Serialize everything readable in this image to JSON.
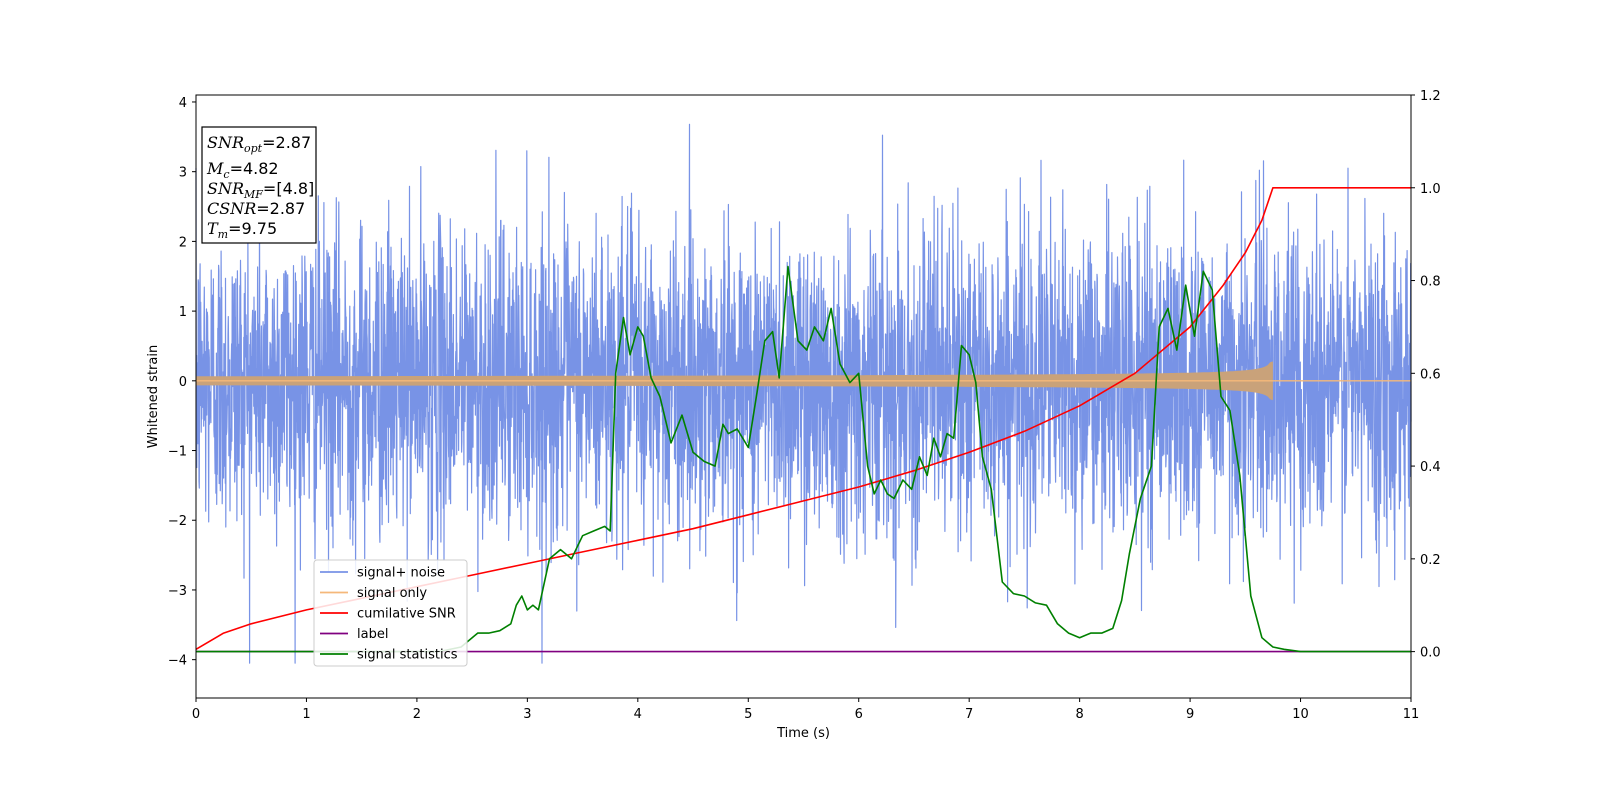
{
  "chart_data": {
    "type": "line",
    "xlabel": "Time (s)",
    "ylabel": "Whitened strain",
    "xlim": [
      0,
      11
    ],
    "ylim_left": [
      -4.55,
      4.1
    ],
    "ylim_right": [
      -0.1,
      1.2
    ],
    "x_ticks": [
      0,
      1,
      2,
      3,
      4,
      5,
      6,
      7,
      8,
      9,
      10,
      11
    ],
    "y_left_ticks": [
      -4,
      -3,
      -2,
      -1,
      0,
      1,
      2,
      3,
      4
    ],
    "y_right_ticks": [
      0.0,
      0.2,
      0.4,
      0.6,
      0.8,
      1.0,
      1.2
    ],
    "grid": false,
    "legend_position": "lower-left",
    "info_box": {
      "snr_opt": {
        "base": "SNR",
        "sub": "opt",
        "value": "=2.87"
      },
      "mc": {
        "base": "M",
        "sub": "c",
        "value": "=4.82"
      },
      "snr_mf": {
        "base": "SNR",
        "sub": "MF",
        "value": "=[4.8]"
      },
      "csnr": {
        "base": "CSNR",
        "value": "=2.87"
      },
      "tm": {
        "base": "T",
        "sub": "m",
        "value": "=9.75"
      }
    },
    "series": [
      {
        "name": "signal+ noise",
        "color": "#7893e6",
        "axis": "left",
        "kind": "noise",
        "sigma": 1.0,
        "x_range": [
          0,
          11
        ],
        "max": 3.68,
        "min": -4.05
      },
      {
        "name": "signal only",
        "color": "#f5b87a",
        "axis": "left",
        "kind": "chirp",
        "merger_time": 9.75,
        "peak_amplitude": 0.3,
        "x_range": [
          0,
          9.75
        ]
      },
      {
        "name": "cumilative SNR",
        "color": "#ff0000",
        "axis": "right",
        "x": [
          0,
          0.25,
          0.5,
          1,
          1.5,
          2,
          2.5,
          3,
          3.5,
          4,
          4.5,
          5,
          5.5,
          6,
          6.5,
          7,
          7.5,
          8,
          8.5,
          9,
          9.3,
          9.5,
          9.65,
          9.75,
          11
        ],
        "y": [
          0.005,
          0.04,
          0.06,
          0.09,
          0.115,
          0.14,
          0.165,
          0.19,
          0.215,
          0.24,
          0.265,
          0.295,
          0.325,
          0.355,
          0.39,
          0.43,
          0.475,
          0.53,
          0.6,
          0.7,
          0.79,
          0.86,
          0.93,
          1.0,
          1.0
        ]
      },
      {
        "name": "label",
        "color": "#800080",
        "axis": "right",
        "x": [
          0,
          11
        ],
        "y": [
          0.0,
          0.0
        ]
      },
      {
        "name": "signal statistics",
        "color": "#008000",
        "axis": "right",
        "x": [
          0,
          2.2,
          2.4,
          2.55,
          2.65,
          2.75,
          2.85,
          2.9,
          2.95,
          3.0,
          3.05,
          3.1,
          3.2,
          3.3,
          3.4,
          3.5,
          3.6,
          3.7,
          3.75,
          3.8,
          3.87,
          3.93,
          4.0,
          4.05,
          4.12,
          4.2,
          4.3,
          4.4,
          4.5,
          4.6,
          4.7,
          4.77,
          4.82,
          4.9,
          5.0,
          5.08,
          5.15,
          5.22,
          5.28,
          5.36,
          5.45,
          5.53,
          5.6,
          5.68,
          5.75,
          5.83,
          5.92,
          6.0,
          6.08,
          6.14,
          6.2,
          6.26,
          6.32,
          6.4,
          6.48,
          6.55,
          6.62,
          6.68,
          6.74,
          6.8,
          6.86,
          6.93,
          7.0,
          7.06,
          7.12,
          7.2,
          7.3,
          7.4,
          7.5,
          7.6,
          7.7,
          7.8,
          7.9,
          8.0,
          8.1,
          8.2,
          8.3,
          8.38,
          8.45,
          8.55,
          8.65,
          8.72,
          8.8,
          8.88,
          8.96,
          9.04,
          9.12,
          9.2,
          9.28,
          9.36,
          9.45,
          9.55,
          9.65,
          9.75,
          9.85,
          10.0,
          11
        ],
        "y": [
          0.0,
          0.0,
          0.01,
          0.04,
          0.04,
          0.045,
          0.06,
          0.1,
          0.12,
          0.09,
          0.1,
          0.09,
          0.2,
          0.22,
          0.2,
          0.25,
          0.26,
          0.27,
          0.26,
          0.6,
          0.72,
          0.64,
          0.7,
          0.68,
          0.59,
          0.55,
          0.45,
          0.51,
          0.43,
          0.41,
          0.4,
          0.49,
          0.47,
          0.48,
          0.44,
          0.56,
          0.67,
          0.69,
          0.59,
          0.83,
          0.67,
          0.65,
          0.7,
          0.67,
          0.74,
          0.62,
          0.58,
          0.6,
          0.4,
          0.34,
          0.37,
          0.34,
          0.33,
          0.37,
          0.35,
          0.42,
          0.38,
          0.46,
          0.42,
          0.47,
          0.46,
          0.66,
          0.64,
          0.58,
          0.42,
          0.35,
          0.15,
          0.125,
          0.12,
          0.105,
          0.1,
          0.06,
          0.04,
          0.03,
          0.04,
          0.04,
          0.05,
          0.11,
          0.21,
          0.33,
          0.4,
          0.7,
          0.74,
          0.65,
          0.79,
          0.68,
          0.82,
          0.78,
          0.55,
          0.52,
          0.38,
          0.12,
          0.03,
          0.01,
          0.005,
          0.0,
          0.0
        ]
      }
    ]
  }
}
